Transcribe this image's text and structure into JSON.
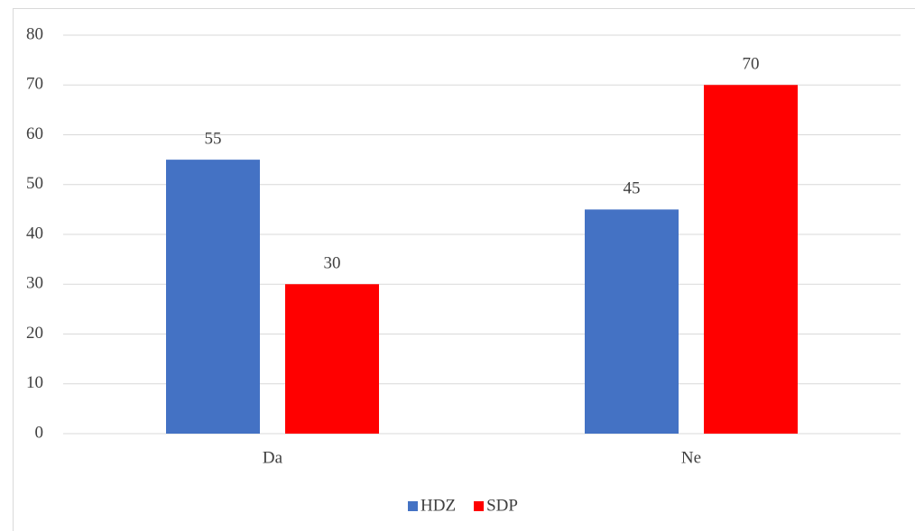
{
  "chart_data": {
    "type": "bar",
    "categories": [
      "Da",
      "Ne"
    ],
    "series": [
      {
        "name": "HDZ",
        "color": "#4472c4",
        "values": [
          55,
          45
        ]
      },
      {
        "name": "SDP",
        "color": "#ff0000",
        "values": [
          30,
          70
        ]
      }
    ],
    "ylim": [
      0,
      80
    ],
    "yticks": [
      0,
      10,
      20,
      30,
      40,
      50,
      60,
      70,
      80
    ],
    "grid": true,
    "legend": "bottom"
  }
}
